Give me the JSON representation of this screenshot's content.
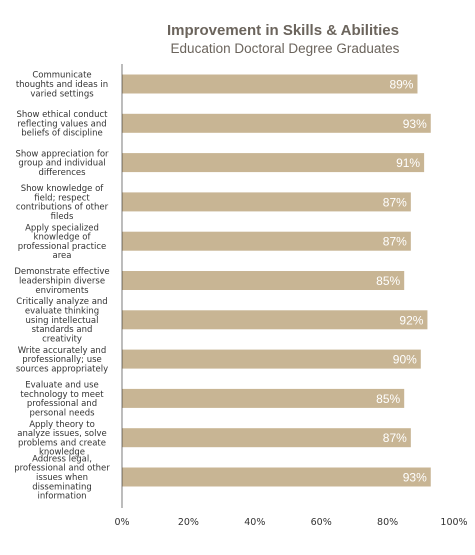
{
  "chart_data": {
    "type": "bar",
    "orientation": "horizontal",
    "title": "Improvement in Skills & Abilities",
    "subtitle": "Education Doctoral Degree Graduates",
    "xlabel": "",
    "ylabel": "",
    "xlim": [
      0,
      100
    ],
    "grid": false,
    "legend": "none",
    "bar_color": "#c8b594",
    "x_ticks": [
      "0%",
      "20%",
      "40%",
      "60%",
      "80%",
      "100%"
    ],
    "categories": [
      [
        "Communicate",
        "thoughts and ideas in",
        "varied settings"
      ],
      [
        "Show ethical conduct",
        "reflecting values and",
        "beliefs of discipline"
      ],
      [
        "Show appreciation for",
        "group and individual",
        "differences"
      ],
      [
        "Show knowledge of",
        "field; respect",
        "contributions of other",
        "fileds"
      ],
      [
        "Apply specialized",
        "knowledge of",
        "professional practice",
        "area"
      ],
      [
        "Demonstrate effective",
        "leadershipin diverse",
        "enviroments"
      ],
      [
        "Critically analyze and",
        "evaluate thinking",
        "using intellectual",
        "standards and",
        "creativity"
      ],
      [
        "Write accurately and",
        "professionally; use",
        "sources appropriately"
      ],
      [
        "Evaluate and use",
        "technology to meet",
        "professional and",
        "personal needs"
      ],
      [
        "Apply theory to",
        "analyze issues, solve",
        "problems and create",
        "knowledge"
      ],
      [
        "Address legal,",
        "professional and other",
        "issues when",
        "disseminating",
        "information"
      ]
    ],
    "values": [
      89,
      93,
      91,
      87,
      87,
      85,
      92,
      90,
      85,
      87,
      93
    ],
    "data_labels": [
      "89%",
      "93%",
      "91%",
      "87%",
      "87%",
      "85%",
      "92%",
      "90%",
      "85%",
      "87%",
      "93%"
    ]
  }
}
